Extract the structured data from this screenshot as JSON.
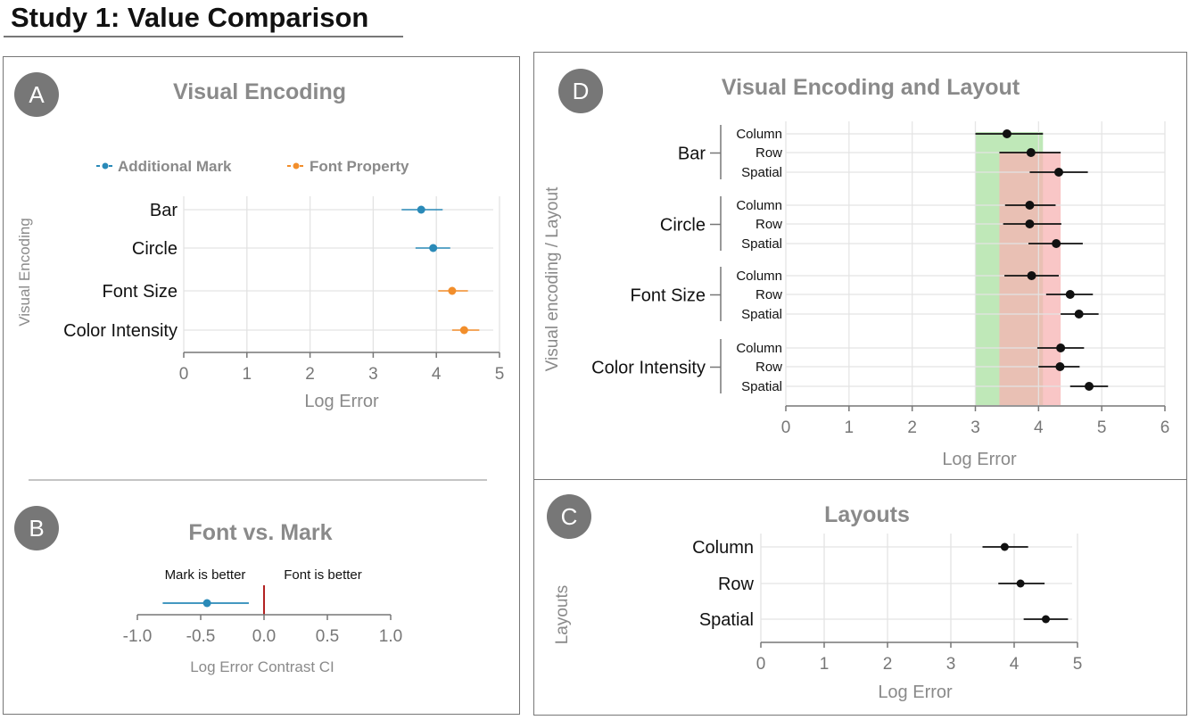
{
  "page": {
    "title": "Study 1: Value Comparison"
  },
  "colors": {
    "blue": "#2a8ab8",
    "orange": "#f28e2b",
    "black": "#111111",
    "green_band": "#a9e0a0",
    "red_band": "#f7b3b3",
    "contrast_zero": "#b22222"
  },
  "chart_data": [
    {
      "id": "A",
      "badge": "A",
      "type": "scatter",
      "title": "Visual Encoding",
      "xlabel": "Log Error",
      "ylabel": "Visual Encoding",
      "xlim": [
        0,
        5
      ],
      "xticks": [
        "0",
        "1",
        "2",
        "3",
        "4",
        "5"
      ],
      "grid": true,
      "legend_position": "top",
      "legend": [
        "Additional Mark",
        "Font Property"
      ],
      "categories": [
        "Bar",
        "Circle",
        "Font Size",
        "Color Intensity"
      ],
      "points": [
        {
          "label": "Bar",
          "group": "Additional Mark",
          "value": 3.76,
          "ci": [
            3.45,
            4.1
          ]
        },
        {
          "label": "Circle",
          "group": "Additional Mark",
          "value": 3.95,
          "ci": [
            3.67,
            4.22
          ]
        },
        {
          "label": "Font Size",
          "group": "Font Property",
          "value": 4.25,
          "ci": [
            4.03,
            4.5
          ]
        },
        {
          "label": "Color Intensity",
          "group": "Font Property",
          "value": 4.44,
          "ci": [
            4.25,
            4.68
          ]
        }
      ]
    },
    {
      "id": "B",
      "badge": "B",
      "type": "scatter",
      "title": "Font vs. Mark",
      "xlabel": "Log Error Contrast CI",
      "xlim": [
        -1.0,
        1.0
      ],
      "xticks": [
        "-1.0",
        "-0.5",
        "0.0",
        "0.5",
        "1.0"
      ],
      "annotations": [
        "Mark is better",
        "Font is better"
      ],
      "points": [
        {
          "value": -0.45,
          "ci": [
            -0.8,
            -0.12
          ]
        }
      ]
    },
    {
      "id": "D",
      "badge": "D",
      "type": "scatter",
      "title": "Visual Encoding and Layout",
      "xlabel": "Log Error",
      "ylabel": "Visual encoding / Layout",
      "xlim": [
        0,
        6
      ],
      "xticks": [
        "0",
        "1",
        "2",
        "3",
        "4",
        "5",
        "6"
      ],
      "grid": true,
      "bands": [
        {
          "color": "green",
          "range": [
            3.0,
            4.07
          ]
        },
        {
          "color": "red",
          "range": [
            3.38,
            4.35
          ]
        }
      ],
      "groups": [
        {
          "label": "Bar",
          "rows": [
            {
              "label": "Column",
              "value": 3.5,
              "ci": [
                3.0,
                4.07
              ]
            },
            {
              "label": "Row",
              "value": 3.88,
              "ci": [
                3.38,
                4.35
              ]
            },
            {
              "label": "Spatial",
              "value": 4.32,
              "ci": [
                3.86,
                4.78
              ]
            }
          ]
        },
        {
          "label": "Circle",
          "rows": [
            {
              "label": "Column",
              "value": 3.86,
              "ci": [
                3.47,
                4.27
              ]
            },
            {
              "label": "Row",
              "value": 3.86,
              "ci": [
                3.44,
                4.36
              ]
            },
            {
              "label": "Spatial",
              "value": 4.28,
              "ci": [
                3.84,
                4.7
              ]
            }
          ]
        },
        {
          "label": "Font Size",
          "rows": [
            {
              "label": "Column",
              "value": 3.89,
              "ci": [
                3.46,
                4.32
              ]
            },
            {
              "label": "Row",
              "value": 4.5,
              "ci": [
                4.12,
                4.86
              ]
            },
            {
              "label": "Spatial",
              "value": 4.64,
              "ci": [
                4.35,
                4.95
              ]
            }
          ]
        },
        {
          "label": "Color Intensity",
          "rows": [
            {
              "label": "Column",
              "value": 4.35,
              "ci": [
                3.98,
                4.72
              ]
            },
            {
              "label": "Row",
              "value": 4.34,
              "ci": [
                4.0,
                4.65
              ]
            },
            {
              "label": "Spatial",
              "value": 4.8,
              "ci": [
                4.5,
                5.1
              ]
            }
          ]
        }
      ]
    },
    {
      "id": "C",
      "badge": "C",
      "type": "scatter",
      "title": "Layouts",
      "xlabel": "Log Error",
      "ylabel": "Layouts",
      "xlim": [
        0,
        5
      ],
      "xticks": [
        "0",
        "1",
        "2",
        "3",
        "4",
        "5"
      ],
      "grid": true,
      "points": [
        {
          "label": "Column",
          "value": 3.85,
          "ci": [
            3.5,
            4.22
          ]
        },
        {
          "label": "Row",
          "value": 4.1,
          "ci": [
            3.75,
            4.48
          ]
        },
        {
          "label": "Spatial",
          "value": 4.5,
          "ci": [
            4.15,
            4.85
          ]
        }
      ]
    }
  ]
}
